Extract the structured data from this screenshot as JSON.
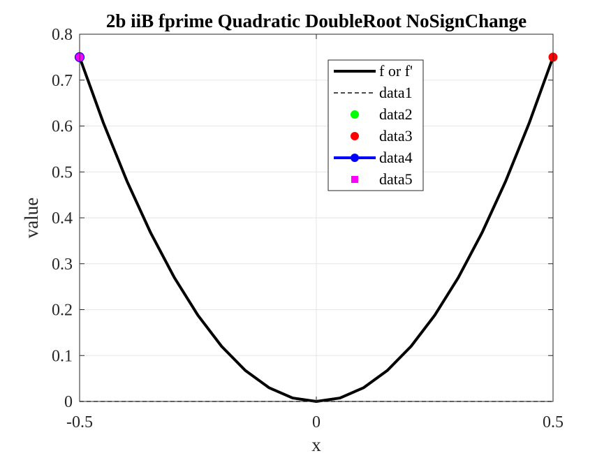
{
  "chart_data": {
    "type": "line",
    "title": "2b iiB fprime Quadratic DoubleRoot NoSignChange",
    "xlabel": "x",
    "ylabel": "value",
    "xlim": [
      -0.5,
      0.5
    ],
    "ylim": [
      0,
      0.8
    ],
    "xticks": [
      -0.5,
      0,
      0.5
    ],
    "xtick_labels": [
      "-0.5",
      "0",
      "0.5"
    ],
    "yticks": [
      0,
      0.1,
      0.2,
      0.3,
      0.4,
      0.5,
      0.6,
      0.7,
      0.8
    ],
    "ytick_labels": [
      "0",
      "0.1",
      "0.2",
      "0.3",
      "0.4",
      "0.5",
      "0.6",
      "0.7",
      "0.8"
    ],
    "grid": true,
    "legend_position": "top-right",
    "series": [
      {
        "name": "f or f'",
        "style": "solid-line",
        "color": "#000000",
        "x": [
          -0.5,
          -0.45,
          -0.4,
          -0.35,
          -0.3,
          -0.25,
          -0.2,
          -0.15,
          -0.1,
          -0.05,
          0,
          0.05,
          0.1,
          0.15,
          0.2,
          0.25,
          0.3,
          0.35,
          0.4,
          0.45,
          0.5
        ],
        "y": [
          0.75,
          0.6075,
          0.48,
          0.3675,
          0.27,
          0.1875,
          0.12,
          0.0675,
          0.03,
          0.0075,
          0,
          0.0075,
          0.03,
          0.0675,
          0.12,
          0.1875,
          0.27,
          0.3675,
          0.48,
          0.6075,
          0.75
        ]
      },
      {
        "name": "data1",
        "style": "dashed-line",
        "color": "#333333",
        "x": [
          -0.5,
          0.5
        ],
        "y": [
          0,
          0
        ]
      },
      {
        "name": "data2",
        "style": "circle-marker",
        "color": "#00ff00",
        "x": [],
        "y": []
      },
      {
        "name": "data3",
        "style": "circle-marker",
        "color": "#ff0000",
        "x": [
          0.5
        ],
        "y": [
          0.75
        ]
      },
      {
        "name": "data4",
        "style": "line-circle-marker",
        "color": "#0000ff",
        "x": [],
        "y": []
      },
      {
        "name": "data5",
        "style": "square-marker",
        "color": "#ff00ff",
        "x": [
          -0.5
        ],
        "y": [
          0.75
        ]
      }
    ]
  }
}
